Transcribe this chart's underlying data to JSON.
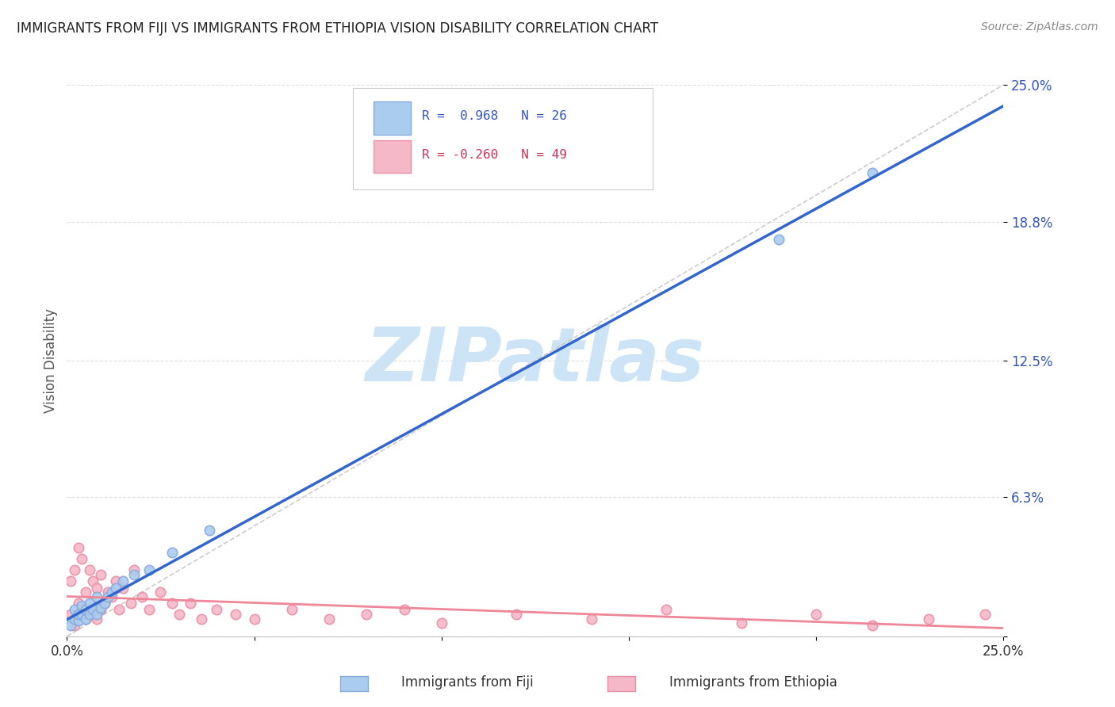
{
  "title": "IMMIGRANTS FROM FIJI VS IMMIGRANTS FROM ETHIOPIA VISION DISABILITY CORRELATION CHART",
  "source": "Source: ZipAtlas.com",
  "ylabel": "Vision Disability",
  "xlim": [
    0.0,
    0.25
  ],
  "ylim": [
    0.0,
    0.25
  ],
  "ytick_values": [
    0.0,
    0.063,
    0.125,
    0.188,
    0.25
  ],
  "ytick_labels": [
    "",
    "6.3%",
    "12.5%",
    "18.8%",
    "25.0%"
  ],
  "xtick_values": [
    0.0,
    0.05,
    0.1,
    0.15,
    0.2,
    0.25
  ],
  "xtick_labels": [
    "0.0%",
    "",
    "",
    "",
    "",
    "25.0%"
  ],
  "background_color": "#ffffff",
  "grid_color": "#dddddd",
  "fiji_color": "#aaccee",
  "fiji_edge_color": "#88aadd",
  "ethiopia_color": "#f5b8c8",
  "ethiopia_edge_color": "#e890a8",
  "fiji_R": 0.968,
  "fiji_N": 26,
  "ethiopia_R": -0.26,
  "ethiopia_N": 49,
  "fiji_line_color": "#3366cc",
  "ethiopia_line_color": "#ee8899",
  "diag_line_color": "#cccccc",
  "watermark_text": "ZIPatlas",
  "watermark_color": "#cce4f5",
  "legend_label_fiji": "Immigrants from Fiji",
  "legend_label_ethiopia": "Immigrants from Ethiopia",
  "fiji_points_x": [
    0.001,
    0.002,
    0.002,
    0.003,
    0.003,
    0.004,
    0.004,
    0.005,
    0.005,
    0.006,
    0.006,
    0.007,
    0.008,
    0.008,
    0.009,
    0.01,
    0.011,
    0.012,
    0.013,
    0.015,
    0.018,
    0.022,
    0.028,
    0.038,
    0.19,
    0.215
  ],
  "fiji_points_y": [
    0.005,
    0.008,
    0.012,
    0.007,
    0.01,
    0.01,
    0.014,
    0.008,
    0.012,
    0.01,
    0.015,
    0.012,
    0.01,
    0.018,
    0.013,
    0.015,
    0.018,
    0.02,
    0.022,
    0.025,
    0.028,
    0.03,
    0.038,
    0.048,
    0.18,
    0.21
  ],
  "ethiopia_points_x": [
    0.001,
    0.001,
    0.002,
    0.002,
    0.003,
    0.003,
    0.004,
    0.004,
    0.005,
    0.005,
    0.006,
    0.006,
    0.007,
    0.007,
    0.008,
    0.008,
    0.009,
    0.009,
    0.01,
    0.011,
    0.012,
    0.013,
    0.014,
    0.015,
    0.017,
    0.018,
    0.02,
    0.022,
    0.025,
    0.028,
    0.03,
    0.033,
    0.036,
    0.04,
    0.045,
    0.05,
    0.06,
    0.07,
    0.08,
    0.09,
    0.1,
    0.12,
    0.14,
    0.16,
    0.18,
    0.2,
    0.215,
    0.23,
    0.245
  ],
  "ethiopia_points_y": [
    0.01,
    0.025,
    0.005,
    0.03,
    0.015,
    0.04,
    0.01,
    0.035,
    0.008,
    0.02,
    0.012,
    0.03,
    0.01,
    0.025,
    0.008,
    0.022,
    0.012,
    0.028,
    0.015,
    0.02,
    0.018,
    0.025,
    0.012,
    0.022,
    0.015,
    0.03,
    0.018,
    0.012,
    0.02,
    0.015,
    0.01,
    0.015,
    0.008,
    0.012,
    0.01,
    0.008,
    0.012,
    0.008,
    0.01,
    0.012,
    0.006,
    0.01,
    0.008,
    0.012,
    0.006,
    0.01,
    0.005,
    0.008,
    0.01
  ]
}
